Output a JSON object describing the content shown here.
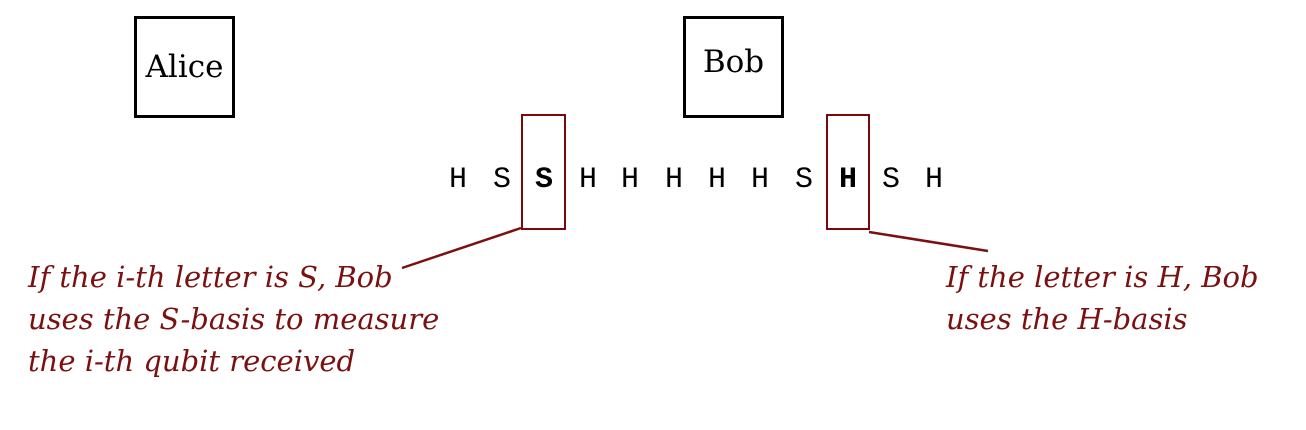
{
  "parties": {
    "alice": "Alice",
    "bob": "Bob"
  },
  "basis_string": [
    {
      "letter": "H",
      "bold": false
    },
    {
      "letter": "S",
      "bold": false
    },
    {
      "letter": "S",
      "bold": true
    },
    {
      "letter": "H",
      "bold": false
    },
    {
      "letter": "H",
      "bold": false
    },
    {
      "letter": "H",
      "bold": false
    },
    {
      "letter": "H",
      "bold": false
    },
    {
      "letter": "H",
      "bold": false
    },
    {
      "letter": "S",
      "bold": false
    },
    {
      "letter": "H",
      "bold": true
    },
    {
      "letter": "S",
      "bold": false
    },
    {
      "letter": "H",
      "bold": false
    }
  ],
  "annotations": {
    "s_basis": [
      "If the i-th letter is S, Bob",
      "uses the S-basis to measure",
      "the i-th qubit received"
    ],
    "h_basis": [
      "If the letter is H, Bob",
      "uses the H-basis"
    ]
  },
  "colors": {
    "accent": "#7a1010",
    "box": "#000000"
  }
}
